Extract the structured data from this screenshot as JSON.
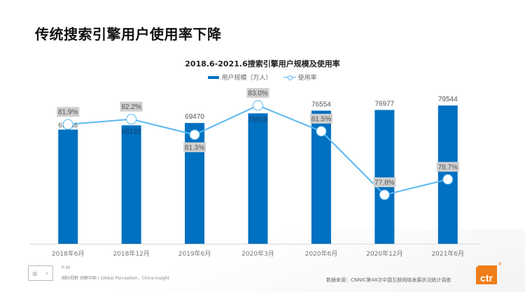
{
  "page": {
    "title": "传统搜索引擎用户使用率下降"
  },
  "chart_data": {
    "type": "bar",
    "combo": "bar+line",
    "title": "2018.6-2021.6搜索引擎用户规模及使用率",
    "categories": [
      "2018年6月",
      "2018年12月",
      "2019年6月",
      "2020年3月",
      "2020年6月",
      "2020年12月",
      "2021年6月"
    ],
    "series": [
      {
        "name": "用户规模（万人）",
        "type": "bar",
        "axis": "primary",
        "color": "#0070c0",
        "values": [
          65688,
          68132,
          69470,
          75015,
          76554,
          76977,
          79544
        ],
        "labels": [
          "65688",
          "68132",
          "69470",
          "75015",
          "76554",
          "76977",
          "79544"
        ]
      },
      {
        "name": "使用率",
        "type": "line",
        "axis": "secondary",
        "color": "#5bb8f0",
        "values": [
          81.9,
          82.2,
          81.3,
          83.0,
          81.5,
          77.8,
          78.7
        ],
        "labels": [
          "81.9%",
          "82.2%",
          "81.3%",
          "83.0%",
          "81.5%",
          "77.8%",
          "78.7%"
        ]
      }
    ],
    "legend": [
      "用户规模（万人）",
      "使用率"
    ],
    "legend_position": "top",
    "xlabel": "",
    "ylabel": "",
    "ylim": [
      0,
      80000
    ],
    "y2lim": [
      75,
      83.5
    ],
    "grid": false
  },
  "footer": {
    "page_number": "P 30",
    "slogan": "国际视野  洞察中国 |  Global Perception，China Insight",
    "source": "数据来源：CNNIC第48次中国互联网络发展状况统计调查",
    "brand": "ctr",
    "brand_mark": "®",
    "brand_color": "#f07d1a"
  }
}
